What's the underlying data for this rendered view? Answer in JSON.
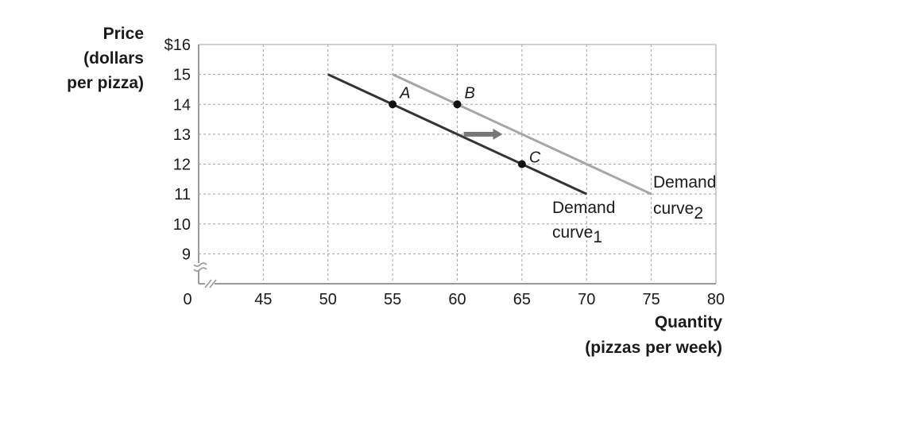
{
  "chart_data": {
    "type": "line",
    "ylabel_lines": [
      "Price",
      "(dollars",
      "per pizza)"
    ],
    "xlabel_lines": [
      "Quantity",
      "(pizzas per week)"
    ],
    "x_origin_label": "0",
    "x_ticks": [
      {
        "value": 45,
        "label": "45"
      },
      {
        "value": 50,
        "label": "50"
      },
      {
        "value": 55,
        "label": "55"
      },
      {
        "value": 60,
        "label": "60"
      },
      {
        "value": 65,
        "label": "65"
      },
      {
        "value": 70,
        "label": "70"
      },
      {
        "value": 75,
        "label": "75"
      },
      {
        "value": 80,
        "label": "80"
      }
    ],
    "y_ticks": [
      {
        "value": 16,
        "label": "$16"
      },
      {
        "value": 15,
        "label": "15"
      },
      {
        "value": 14,
        "label": "14"
      },
      {
        "value": 13,
        "label": "13"
      },
      {
        "value": 12,
        "label": "12"
      },
      {
        "value": 11,
        "label": "11"
      },
      {
        "value": 10,
        "label": "10"
      },
      {
        "value": 9,
        "label": "9"
      }
    ],
    "xlim": [
      40,
      80
    ],
    "ylim": [
      8,
      16
    ],
    "axis_breaks": true,
    "grid": "dashed",
    "series": [
      {
        "label_main": "Demand",
        "label_word": "curve",
        "label_sub": "1",
        "color": "#333333",
        "x": [
          50,
          70
        ],
        "y": [
          15,
          11
        ]
      },
      {
        "label_main": "Demand",
        "label_word": "curve",
        "label_sub": "2",
        "color": "#a6a6a6",
        "x": [
          55,
          75
        ],
        "y": [
          15,
          11
        ]
      }
    ],
    "points": [
      {
        "label": "A",
        "x": 55,
        "y": 14
      },
      {
        "label": "B",
        "x": 60,
        "y": 14
      },
      {
        "label": "C",
        "x": 65,
        "y": 12
      }
    ],
    "shift_arrow": {
      "from": [
        60.5,
        13
      ],
      "to": [
        63.5,
        13
      ],
      "color": "#777777"
    }
  }
}
